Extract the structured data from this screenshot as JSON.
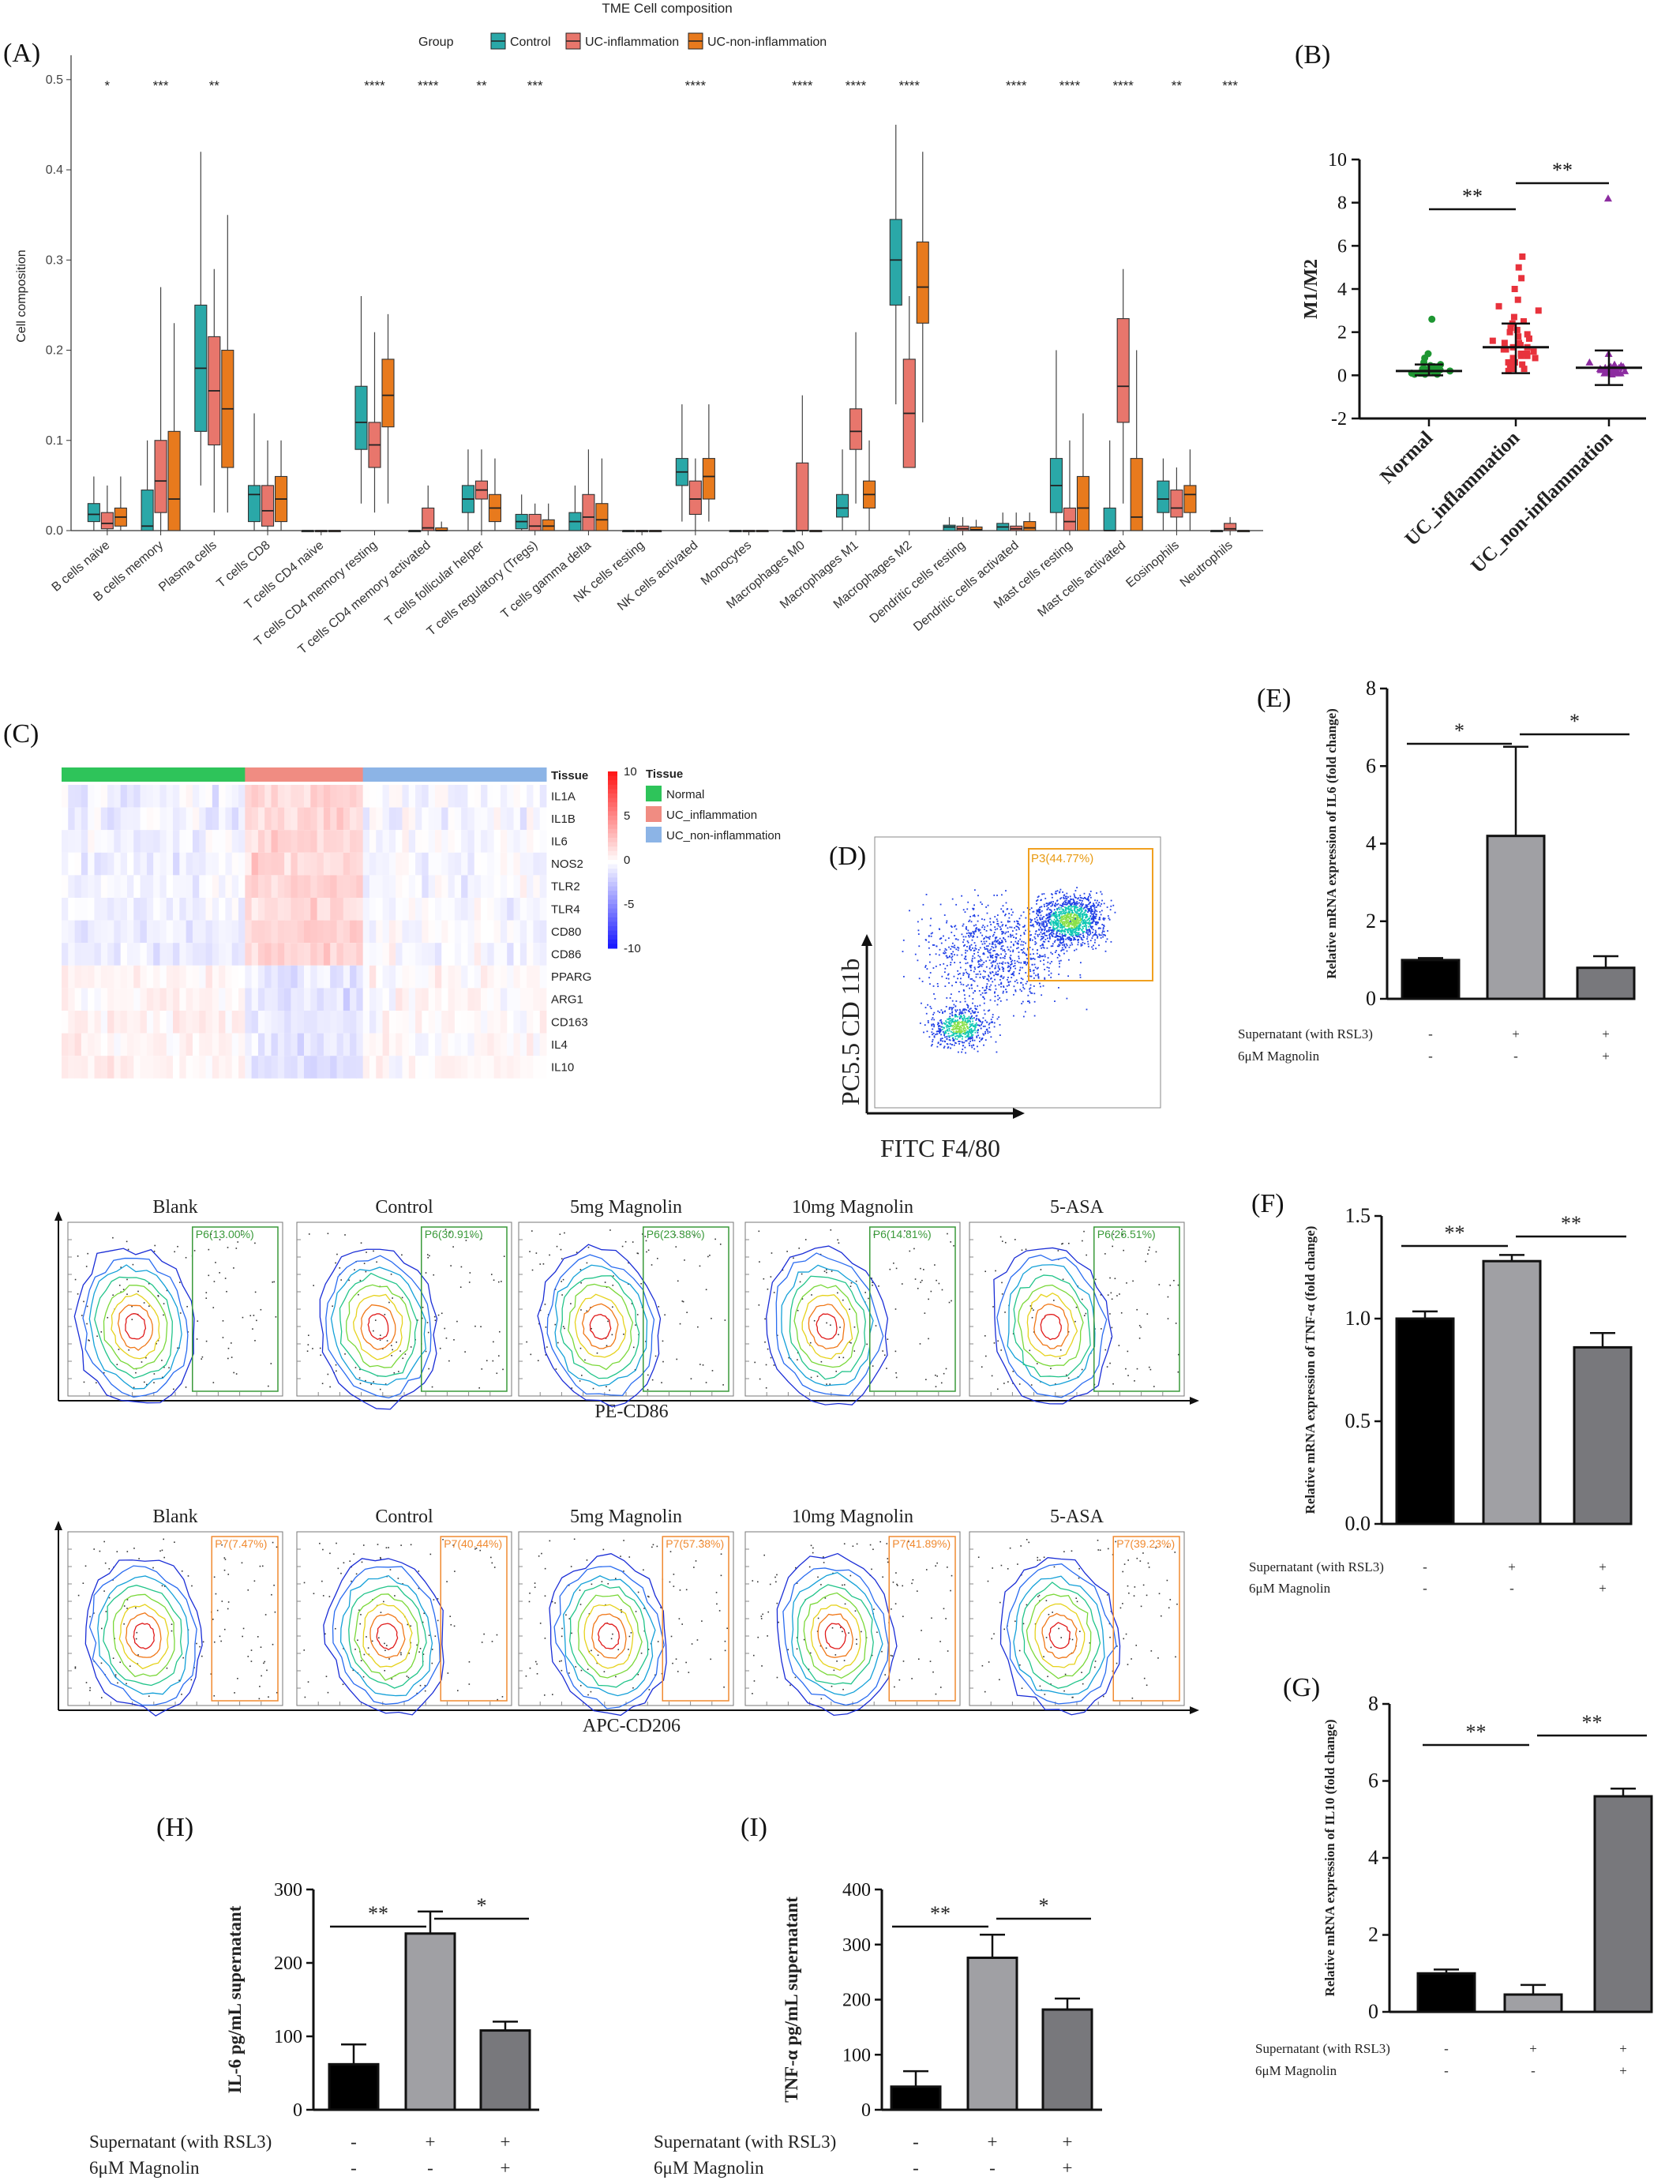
{
  "panels": {
    "A": "(A)",
    "B": "(B)",
    "C": "(C)",
    "D": "(D)",
    "E": "(E)",
    "F": "(F)",
    "G": "(G)",
    "H": "(H)",
    "I": "(I)"
  },
  "chart_data": [
    {
      "id": "A",
      "type": "box",
      "title": "TME Cell composition",
      "legend_title": "Group",
      "ylabel": "Cell composition",
      "yticks": [
        0.0,
        0.1,
        0.2,
        0.3,
        0.4,
        0.5
      ],
      "ylim": [
        0,
        0.52
      ],
      "categories": [
        "B cells naive",
        "B cells memory",
        "Plasma cells",
        "T cells CD8",
        "T cells CD4 naive",
        "T cells CD4 memory resting",
        "T cells CD4 memory activated",
        "T cells follicular helper",
        "T cells regulatory (Tregs)",
        "T cells gamma delta",
        "NK cells resting",
        "NK cells activated",
        "Monocytes",
        "Macrophages M0",
        "Macrophages M1",
        "Macrophages M2",
        "Dendritic cells resting",
        "Dendritic cells activated",
        "Mast cells resting",
        "Mast cells activated",
        "Eosinophils",
        "Neutrophils"
      ],
      "significance": [
        "*",
        "***",
        "**",
        "",
        "",
        "****",
        "****",
        "**",
        "***",
        "",
        "",
        "****",
        "",
        "****",
        "****",
        "****",
        "",
        "****",
        "****",
        "****",
        "**",
        "***"
      ],
      "series": [
        {
          "name": "Control",
          "color": "#2aa8a8",
          "boxes": [
            [
              0,
              0.01,
              0.018,
              0.03,
              0.06
            ],
            [
              0,
              0,
              0.005,
              0.045,
              0.1
            ],
            [
              0.05,
              0.11,
              0.18,
              0.25,
              0.42
            ],
            [
              0,
              0.01,
              0.04,
              0.05,
              0.13
            ],
            [
              0,
              0,
              0,
              0,
              0
            ],
            [
              0.03,
              0.09,
              0.12,
              0.16,
              0.26
            ],
            [
              0,
              0,
              0,
              0,
              0
            ],
            [
              0,
              0.02,
              0.035,
              0.05,
              0.09
            ],
            [
              0,
              0.002,
              0.01,
              0.018,
              0.04
            ],
            [
              0,
              0,
              0.01,
              0.02,
              0.05
            ],
            [
              0,
              0,
              0,
              0,
              0
            ],
            [
              0.01,
              0.05,
              0.065,
              0.08,
              0.14
            ],
            [
              0,
              0,
              0,
              0,
              0
            ],
            [
              0,
              0,
              0,
              0,
              0
            ],
            [
              0,
              0.015,
              0.025,
              0.04,
              0.09
            ],
            [
              0.14,
              0.25,
              0.3,
              0.345,
              0.45
            ],
            [
              0,
              0,
              0.004,
              0.006,
              0.015
            ],
            [
              0,
              0,
              0.004,
              0.008,
              0.02
            ],
            [
              0,
              0.02,
              0.05,
              0.08,
              0.2
            ],
            [
              0,
              0,
              0,
              0.025,
              0.1
            ],
            [
              0,
              0.02,
              0.035,
              0.055,
              0.08
            ],
            [
              0,
              0,
              0,
              0,
              0
            ]
          ]
        },
        {
          "name": "UC-inflammation",
          "color": "#e8766c",
          "boxes": [
            [
              0,
              0.002,
              0.008,
              0.02,
              0.05
            ],
            [
              0,
              0.02,
              0.055,
              0.1,
              0.27
            ],
            [
              0.02,
              0.095,
              0.155,
              0.215,
              0.29
            ],
            [
              0,
              0.005,
              0.022,
              0.05,
              0.1
            ],
            [
              0,
              0,
              0,
              0,
              0
            ],
            [
              0.02,
              0.07,
              0.095,
              0.12,
              0.22
            ],
            [
              0,
              0,
              0.003,
              0.025,
              0.05
            ],
            [
              0,
              0.035,
              0.045,
              0.055,
              0.09
            ],
            [
              0,
              0,
              0.005,
              0.018,
              0.03
            ],
            [
              0,
              0,
              0.015,
              0.04,
              0.09
            ],
            [
              0,
              0,
              0,
              0,
              0
            ],
            [
              0,
              0.018,
              0.035,
              0.055,
              0.08
            ],
            [
              0,
              0,
              0,
              0,
              0
            ],
            [
              0,
              0,
              0,
              0.075,
              0.15
            ],
            [
              0.03,
              0.09,
              0.11,
              0.135,
              0.22
            ],
            [
              0.07,
              0.07,
              0.13,
              0.19,
              0.26
            ],
            [
              0,
              0,
              0.002,
              0.005,
              0.015
            ],
            [
              0,
              0,
              0.002,
              0.005,
              0.02
            ],
            [
              0,
              0,
              0.01,
              0.025,
              0.1
            ],
            [
              0.03,
              0.12,
              0.16,
              0.235,
              0.29
            ],
            [
              0,
              0.015,
              0.025,
              0.045,
              0.07
            ],
            [
              0,
              0,
              0.002,
              0.008,
              0.015
            ]
          ]
        },
        {
          "name": "UC-non-inflammation",
          "color": "#e87a1d",
          "boxes": [
            [
              0,
              0.005,
              0.015,
              0.025,
              0.06
            ],
            [
              0,
              0,
              0.035,
              0.11,
              0.23
            ],
            [
              0.02,
              0.07,
              0.135,
              0.2,
              0.35
            ],
            [
              0,
              0.01,
              0.035,
              0.06,
              0.1
            ],
            [
              0,
              0,
              0,
              0,
              0
            ],
            [
              0.03,
              0.115,
              0.15,
              0.19,
              0.24
            ],
            [
              0,
              0,
              0,
              0.003,
              0.01
            ],
            [
              0,
              0.01,
              0.025,
              0.04,
              0.08
            ],
            [
              0,
              0,
              0.005,
              0.012,
              0.03
            ],
            [
              0,
              0,
              0.012,
              0.03,
              0.08
            ],
            [
              0,
              0,
              0,
              0,
              0
            ],
            [
              0.01,
              0.035,
              0.06,
              0.08,
              0.14
            ],
            [
              0,
              0,
              0,
              0,
              0
            ],
            [
              0,
              0,
              0,
              0,
              0
            ],
            [
              0,
              0.025,
              0.04,
              0.055,
              0.1
            ],
            [
              0.12,
              0.23,
              0.27,
              0.32,
              0.42
            ],
            [
              0,
              0,
              0.001,
              0.004,
              0.012
            ],
            [
              0,
              0,
              0.003,
              0.01,
              0.02
            ],
            [
              0,
              0,
              0.025,
              0.06,
              0.13
            ],
            [
              0,
              0,
              0.015,
              0.08,
              0.2
            ],
            [
              0,
              0.02,
              0.04,
              0.05,
              0.09
            ],
            [
              0,
              0,
              0,
              0,
              0
            ]
          ]
        }
      ]
    },
    {
      "id": "B",
      "type": "scatter",
      "ylabel": "M1/M2",
      "yticks": [
        -2,
        0,
        2,
        4,
        6,
        8,
        10
      ],
      "ylim": [
        -2,
        10
      ],
      "categories": [
        "Normal",
        "UC_inflammation",
        "UC_non-inflammation"
      ],
      "colors": [
        "#1e9632",
        "#e8323c",
        "#8c2ca0"
      ],
      "means": [
        0.2,
        1.3,
        0.35
      ],
      "sd_low": [
        0,
        0.1,
        -0.45
      ],
      "sd_high": [
        0.5,
        2.4,
        1.15
      ],
      "points": [
        [
          0.1,
          0.2,
          0.05,
          0.3,
          0.15,
          0.4,
          0.25,
          0.1,
          0.6,
          2.6,
          1.0,
          0.8,
          0.3,
          0.2,
          0.1,
          0.05,
          0.5,
          0.35,
          0.2,
          0.15,
          0.3,
          0.1,
          0.25,
          0.45,
          0.2,
          0.1,
          0.05,
          0.35,
          0.15,
          0.3
        ],
        [
          0.5,
          0.9,
          1.2,
          1.5,
          2.0,
          2.4,
          3.0,
          3.5,
          4.0,
          4.5,
          5.0,
          5.5,
          0.3,
          0.7,
          1.0,
          1.3,
          1.8,
          2.2,
          0.2,
          0.6,
          1.1,
          1.4,
          0.8,
          1.6,
          2.7,
          0.4,
          1.9,
          1.2,
          0.9,
          0.6,
          1.5,
          2.1,
          3.2,
          0.5,
          1.0,
          1.7,
          0.3,
          2.5,
          0.8,
          1.3
        ],
        [
          0.1,
          0.2,
          0.3,
          0.4,
          0.5,
          0.15,
          0.25,
          0.35,
          0.05,
          0.6,
          1.0,
          8.2,
          0.2,
          0.3,
          0.1,
          0.4,
          0.25,
          0.35,
          0.15,
          0.2,
          0.3,
          0.45,
          0.1,
          0.2,
          0.3
        ]
      ],
      "significance": [
        {
          "from": 0,
          "to": 1,
          "label": "**"
        },
        {
          "from": 1,
          "to": 2,
          "label": "**"
        }
      ]
    },
    {
      "id": "C",
      "type": "heatmap",
      "rows": [
        "IL1A",
        "IL1B",
        "IL6",
        "NOS2",
        "TLR2",
        "TLR4",
        "CD80",
        "CD86",
        "PPARG",
        "ARG1",
        "CD163",
        "IL4",
        "IL10"
      ],
      "annotation_title": "Tissue",
      "groups": [
        {
          "name": "Normal",
          "color": "#2ec45a",
          "n": 28
        },
        {
          "name": "UC_inflammation",
          "color": "#f08c82",
          "n": 18
        },
        {
          "name": "UC_non-inflammation",
          "color": "#8cb4e6",
          "n": 28
        }
      ],
      "legend_title": "Tissue",
      "scale_ticks": [
        10,
        5,
        0,
        -5,
        -10
      ]
    },
    {
      "id": "D",
      "type": "flow-density",
      "xlabel": "FITC F4/80",
      "ylabel": "PC5.5 CD 11b",
      "gate_label": "P3(44.77%)"
    },
    {
      "id": "flow-CD86",
      "type": "flow-contour",
      "xlabel": "PE-CD86",
      "panels": [
        {
          "title": "Blank",
          "gate": "P6(13.00%)"
        },
        {
          "title": "Control",
          "gate": "P6(30.91%)"
        },
        {
          "title": "5mg Magnolin",
          "gate": "P6(23.38%)"
        },
        {
          "title": "10mg Magnolin",
          "gate": "P6(14.81%)"
        },
        {
          "title": "5-ASA",
          "gate": "P6(26.51%)"
        }
      ]
    },
    {
      "id": "flow-CD206",
      "type": "flow-contour",
      "xlabel": "APC-CD206",
      "panels": [
        {
          "title": "Blank",
          "gate": "P7(7.47%)"
        },
        {
          "title": "Control",
          "gate": "P7(40.44%)"
        },
        {
          "title": "5mg Magnolin",
          "gate": "P7(57.38%)"
        },
        {
          "title": "10mg Magnolin",
          "gate": "P7(41.89%)"
        },
        {
          "title": "5-ASA",
          "gate": "P7(39.23%)"
        }
      ]
    },
    {
      "id": "E",
      "type": "bar",
      "ylabel": "Relative mRNA expression of IL6 (fold change)",
      "yticks": [
        0,
        2,
        4,
        6,
        8
      ],
      "ylim": [
        0,
        8
      ],
      "values": [
        1.0,
        4.2,
        0.8
      ],
      "errors": [
        0.05,
        2.3,
        0.3
      ],
      "colors": [
        "#000000",
        "#a0a0a4",
        "#78787c"
      ],
      "row1_label": "Supernatant (with RSL3)",
      "row1": [
        "-",
        "+",
        "+"
      ],
      "row2_label": "6μM Magnolin",
      "row2": [
        "-",
        "-",
        "+"
      ],
      "significance": [
        {
          "from": 0,
          "to": 1,
          "label": "*"
        },
        {
          "from": 1,
          "to": 2,
          "label": "*"
        }
      ]
    },
    {
      "id": "F",
      "type": "bar",
      "ylabel": "Relative mRNA expression of TNF-α (fold change)",
      "yticks": [
        0.0,
        0.5,
        1.0,
        1.5
      ],
      "ylim": [
        0,
        1.5
      ],
      "values": [
        1.0,
        1.28,
        0.86
      ],
      "errors": [
        0.035,
        0.03,
        0.07
      ],
      "colors": [
        "#000000",
        "#a0a0a4",
        "#78787c"
      ],
      "row1_label": "Supernatant (with RSL3)",
      "row1": [
        "-",
        "+",
        "+"
      ],
      "row2_label": "6μM Magnolin",
      "row2": [
        "-",
        "-",
        "+"
      ],
      "significance": [
        {
          "from": 0,
          "to": 1,
          "label": "**"
        },
        {
          "from": 1,
          "to": 2,
          "label": "**"
        }
      ]
    },
    {
      "id": "G",
      "type": "bar",
      "ylabel": "Relative mRNA expression of IL10 (fold change)",
      "yticks": [
        0,
        2,
        4,
        6,
        8
      ],
      "ylim": [
        0,
        8
      ],
      "values": [
        1.0,
        0.45,
        5.6
      ],
      "errors": [
        0.1,
        0.25,
        0.2
      ],
      "colors": [
        "#000000",
        "#a0a0a4",
        "#78787c"
      ],
      "row1_label": "Supernatant (with RSL3)",
      "row1": [
        "-",
        "+",
        "+"
      ],
      "row2_label": "6μM Magnolin",
      "row2": [
        "-",
        "-",
        "+"
      ],
      "significance": [
        {
          "from": 0,
          "to": 1,
          "label": "**"
        },
        {
          "from": 1,
          "to": 2,
          "label": "**"
        }
      ]
    },
    {
      "id": "H",
      "type": "bar",
      "ylabel": "IL-6 pg/mL supernatant",
      "yticks": [
        0,
        100,
        200,
        300
      ],
      "ylim": [
        0,
        300
      ],
      "values": [
        62,
        240,
        108
      ],
      "errors": [
        27,
        30,
        12
      ],
      "colors": [
        "#000000",
        "#a0a0a4",
        "#78787c"
      ],
      "row1_label": "Supernatant (with RSL3)",
      "row1": [
        "-",
        "+",
        "+"
      ],
      "row2_label": "6μM Magnolin",
      "row2": [
        "-",
        "-",
        "+"
      ],
      "significance": [
        {
          "from": 0,
          "to": 1,
          "label": "**"
        },
        {
          "from": 1,
          "to": 2,
          "label": "*"
        }
      ]
    },
    {
      "id": "I",
      "type": "bar",
      "ylabel": "TNF-α pg/mL supernatant",
      "yticks": [
        0,
        100,
        200,
        300,
        400
      ],
      "ylim": [
        0,
        400
      ],
      "values": [
        42,
        276,
        182
      ],
      "errors": [
        28,
        42,
        20
      ],
      "colors": [
        "#000000",
        "#a0a0a4",
        "#78787c"
      ],
      "row1_label": "Supernatant (with RSL3)",
      "row1": [
        "-",
        "+",
        "+"
      ],
      "row2_label": "6μM Magnolin",
      "row2": [
        "-",
        "-",
        "+"
      ],
      "significance": [
        {
          "from": 0,
          "to": 1,
          "label": "**"
        },
        {
          "from": 1,
          "to": 2,
          "label": "*"
        }
      ]
    }
  ]
}
